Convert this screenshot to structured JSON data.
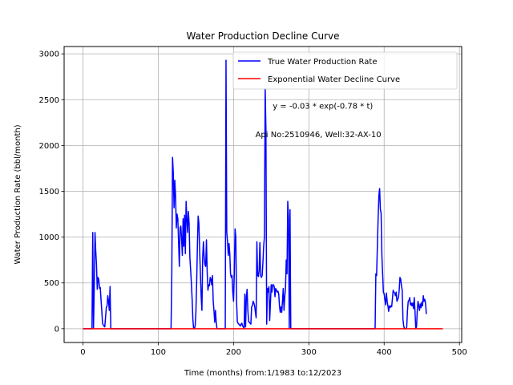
{
  "chart_data": {
    "type": "line",
    "title": "Water Production Decline Curve",
    "xlabel": "Time (months) from:1/1983 to:12/2023",
    "ylabel": "Water Production Rate (bbl/month)",
    "xlim": [
      -25,
      503
    ],
    "ylim": [
      -150,
      3080
    ],
    "xticks": [
      0,
      100,
      200,
      300,
      400,
      500
    ],
    "yticks": [
      0,
      500,
      1000,
      1500,
      2000,
      2500,
      3000
    ],
    "grid": true,
    "legend_position": "top-right",
    "annotations": [
      {
        "text": "y = -0.03 * exp(-0.78 * t)",
        "x": 252,
        "y": 2400
      },
      {
        "text": "Api No:2510946, Well:32-AX-10",
        "x": 229,
        "y": 2090
      }
    ],
    "series": [
      {
        "name": "True Water Production Rate",
        "color": "#0000ff",
        "points": [
          [
            0,
            0
          ],
          [
            12,
            0
          ],
          [
            13,
            1050
          ],
          [
            14,
            0
          ],
          [
            15,
            450
          ],
          [
            16,
            1050
          ],
          [
            17,
            850
          ],
          [
            18,
            700
          ],
          [
            19,
            430
          ],
          [
            20,
            560
          ],
          [
            21,
            540
          ],
          [
            22,
            440
          ],
          [
            23,
            450
          ],
          [
            24,
            320
          ],
          [
            25,
            200
          ],
          [
            26,
            60
          ],
          [
            27,
            40
          ],
          [
            28,
            30
          ],
          [
            29,
            20
          ],
          [
            31,
            230
          ],
          [
            32,
            250
          ],
          [
            33,
            360
          ],
          [
            34,
            300
          ],
          [
            35,
            200
          ],
          [
            36,
            460
          ],
          [
            37,
            0
          ],
          [
            117,
            0
          ],
          [
            118,
            600
          ],
          [
            119,
            1870
          ],
          [
            120,
            1700
          ],
          [
            121,
            1320
          ],
          [
            122,
            1620
          ],
          [
            123,
            1450
          ],
          [
            124,
            1100
          ],
          [
            125,
            1250
          ],
          [
            126,
            1200
          ],
          [
            127,
            950
          ],
          [
            128,
            680
          ],
          [
            129,
            1100
          ],
          [
            130,
            1120
          ],
          [
            131,
            980
          ],
          [
            132,
            800
          ],
          [
            133,
            1200
          ],
          [
            134,
            900
          ],
          [
            135,
            1240
          ],
          [
            136,
            820
          ],
          [
            137,
            1390
          ],
          [
            138,
            1200
          ],
          [
            139,
            1050
          ],
          [
            140,
            1280
          ],
          [
            141,
            1150
          ],
          [
            142,
            780
          ],
          [
            143,
            640
          ],
          [
            144,
            500
          ],
          [
            145,
            320
          ],
          [
            146,
            100
          ],
          [
            147,
            0
          ],
          [
            148,
            0
          ],
          [
            149,
            30
          ],
          [
            150,
            180
          ],
          [
            151,
            500
          ],
          [
            152,
            900
          ],
          [
            153,
            1230
          ],
          [
            154,
            1150
          ],
          [
            155,
            850
          ],
          [
            156,
            600
          ],
          [
            157,
            350
          ],
          [
            158,
            200
          ],
          [
            159,
            780
          ],
          [
            160,
            950
          ],
          [
            161,
            780
          ],
          [
            162,
            700
          ],
          [
            163,
            680
          ],
          [
            164,
            970
          ],
          [
            165,
            620
          ],
          [
            166,
            420
          ],
          [
            167,
            480
          ],
          [
            168,
            470
          ],
          [
            169,
            560
          ],
          [
            170,
            540
          ],
          [
            171,
            480
          ],
          [
            172,
            580
          ],
          [
            173,
            300
          ],
          [
            174,
            200
          ],
          [
            175,
            70
          ],
          [
            176,
            200
          ],
          [
            177,
            70
          ],
          [
            178,
            0
          ],
          [
            189,
            0
          ],
          [
            190,
            2930
          ],
          [
            191,
            1050
          ],
          [
            192,
            950
          ],
          [
            193,
            800
          ],
          [
            194,
            930
          ],
          [
            195,
            820
          ],
          [
            196,
            600
          ],
          [
            197,
            560
          ],
          [
            198,
            580
          ],
          [
            199,
            400
          ],
          [
            200,
            300
          ],
          [
            201,
            600
          ],
          [
            202,
            1090
          ],
          [
            203,
            1000
          ],
          [
            204,
            300
          ],
          [
            205,
            80
          ],
          [
            206,
            60
          ],
          [
            207,
            50
          ],
          [
            208,
            40
          ],
          [
            209,
            30
          ],
          [
            210,
            50
          ],
          [
            211,
            60
          ],
          [
            212,
            30
          ],
          [
            213,
            20
          ],
          [
            214,
            0
          ],
          [
            215,
            380
          ],
          [
            216,
            20
          ],
          [
            217,
            350
          ],
          [
            218,
            430
          ],
          [
            219,
            200
          ],
          [
            220,
            80
          ],
          [
            221,
            70
          ],
          [
            222,
            60
          ],
          [
            223,
            50
          ],
          [
            224,
            240
          ],
          [
            225,
            250
          ],
          [
            226,
            300
          ],
          [
            227,
            280
          ],
          [
            228,
            250
          ],
          [
            229,
            180
          ],
          [
            230,
            120
          ],
          [
            231,
            950
          ],
          [
            232,
            580
          ],
          [
            233,
            570
          ],
          [
            234,
            640
          ],
          [
            235,
            940
          ],
          [
            236,
            580
          ],
          [
            237,
            560
          ],
          [
            238,
            580
          ],
          [
            239,
            720
          ],
          [
            240,
            900
          ],
          [
            241,
            1000
          ],
          [
            242,
            2620
          ],
          [
            243,
            2180
          ],
          [
            244,
            50
          ],
          [
            245,
            440
          ],
          [
            246,
            400
          ],
          [
            247,
            460
          ],
          [
            248,
            90
          ],
          [
            249,
            280
          ],
          [
            250,
            480
          ],
          [
            251,
            400
          ],
          [
            252,
            480
          ],
          [
            253,
            480
          ],
          [
            254,
            460
          ],
          [
            255,
            350
          ],
          [
            256,
            440
          ],
          [
            257,
            420
          ],
          [
            258,
            400
          ],
          [
            259,
            410
          ],
          [
            260,
            380
          ],
          [
            261,
            250
          ],
          [
            262,
            180
          ],
          [
            263,
            240
          ],
          [
            264,
            180
          ],
          [
            265,
            300
          ],
          [
            266,
            440
          ],
          [
            267,
            200
          ],
          [
            268,
            350
          ],
          [
            269,
            440
          ],
          [
            270,
            750
          ],
          [
            271,
            600
          ],
          [
            272,
            1390
          ],
          [
            273,
            1200
          ],
          [
            274,
            0
          ],
          [
            275,
            1300
          ],
          [
            276,
            0
          ],
          [
            388,
            0
          ],
          [
            389,
            600
          ],
          [
            390,
            580
          ],
          [
            391,
            900
          ],
          [
            392,
            1200
          ],
          [
            393,
            1450
          ],
          [
            394,
            1530
          ],
          [
            395,
            1300
          ],
          [
            396,
            1260
          ],
          [
            397,
            800
          ],
          [
            398,
            600
          ],
          [
            399,
            400
          ],
          [
            400,
            380
          ],
          [
            401,
            320
          ],
          [
            402,
            260
          ],
          [
            403,
            390
          ],
          [
            404,
            300
          ],
          [
            405,
            250
          ],
          [
            406,
            190
          ],
          [
            407,
            250
          ],
          [
            408,
            230
          ],
          [
            409,
            250
          ],
          [
            410,
            240
          ],
          [
            411,
            330
          ],
          [
            412,
            420
          ],
          [
            413,
            400
          ],
          [
            414,
            390
          ],
          [
            415,
            360
          ],
          [
            416,
            400
          ],
          [
            417,
            300
          ],
          [
            418,
            320
          ],
          [
            419,
            340
          ],
          [
            420,
            420
          ],
          [
            421,
            560
          ],
          [
            422,
            540
          ],
          [
            423,
            470
          ],
          [
            424,
            420
          ],
          [
            425,
            100
          ],
          [
            426,
            30
          ],
          [
            427,
            0
          ],
          [
            428,
            0
          ],
          [
            429,
            0
          ],
          [
            430,
            20
          ],
          [
            431,
            200
          ],
          [
            432,
            300
          ],
          [
            433,
            310
          ],
          [
            434,
            340
          ],
          [
            435,
            260
          ],
          [
            436,
            280
          ],
          [
            437,
            250
          ],
          [
            438,
            280
          ],
          [
            439,
            220
          ],
          [
            440,
            340
          ],
          [
            441,
            190
          ],
          [
            442,
            0
          ],
          [
            443,
            20
          ],
          [
            444,
            200
          ],
          [
            445,
            300
          ],
          [
            446,
            250
          ],
          [
            447,
            200
          ],
          [
            448,
            270
          ],
          [
            449,
            230
          ],
          [
            450,
            290
          ],
          [
            451,
            250
          ],
          [
            452,
            360
          ],
          [
            453,
            300
          ],
          [
            454,
            320
          ],
          [
            455,
            280
          ],
          [
            456,
            160
          ]
        ]
      },
      {
        "name": "Exponential Water Decline Curve",
        "color": "#ff0000",
        "points": [
          [
            0,
            0
          ],
          [
            478,
            0
          ]
        ]
      }
    ]
  }
}
